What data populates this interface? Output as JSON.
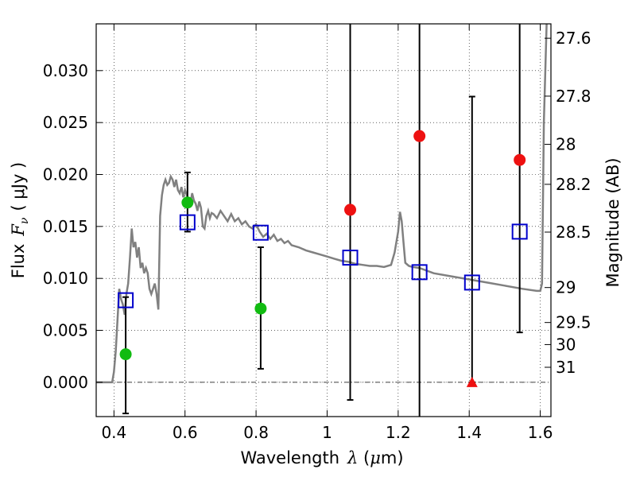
{
  "chart_data": {
    "type": "scatter",
    "xlabel": {
      "text": "Wavelength",
      "symbol": "λ",
      "unit_open": " (",
      "unit_mu": "μ",
      "unit_rest": "m)"
    },
    "ylabel": {
      "text": "Flux",
      "symbol": "F",
      "subscript": "ν",
      "unit": "(  μJy )"
    },
    "y2label": "Magnitude (AB)",
    "xlim": [
      0.35,
      1.63
    ],
    "ylim": [
      -0.0033,
      0.0345
    ],
    "x_ticks": [
      0.4,
      0.6,
      0.8,
      1.0,
      1.2,
      1.4,
      1.6
    ],
    "x_tick_labels": [
      "0.4",
      "0.6",
      "0.8",
      "1",
      "1.2",
      "1.4",
      "1.6"
    ],
    "y_ticks": [
      0,
      0.005,
      0.01,
      0.015,
      0.02,
      0.025,
      0.03
    ],
    "y_tick_labels": [
      "0.000",
      "0.005",
      "0.010",
      "0.015",
      "0.020",
      "0.025",
      "0.030"
    ],
    "mag_ticks": [
      27.6,
      27.8,
      28,
      28.2,
      28.5,
      29,
      29.5,
      30,
      31
    ],
    "mag_tick_labels": [
      "27.6",
      "27.8",
      "28",
      "28.2",
      "28.5",
      "29",
      "29.5",
      "30",
      "31"
    ],
    "grid": true,
    "colors": {
      "sed": "#808080",
      "model": "#0000cc",
      "green": "#11bb11",
      "red": "#ee1111",
      "errorbar": "#000000"
    },
    "sed": {
      "x": [
        0.35,
        0.36,
        0.37,
        0.38,
        0.385,
        0.39,
        0.395,
        0.4,
        0.405,
        0.41,
        0.415,
        0.42,
        0.425,
        0.43,
        0.435,
        0.44,
        0.445,
        0.45,
        0.455,
        0.46,
        0.465,
        0.47,
        0.475,
        0.48,
        0.485,
        0.49,
        0.495,
        0.5,
        0.505,
        0.51,
        0.515,
        0.52,
        0.525,
        0.53,
        0.535,
        0.54,
        0.545,
        0.55,
        0.555,
        0.56,
        0.565,
        0.57,
        0.575,
        0.58,
        0.585,
        0.59,
        0.595,
        0.6,
        0.605,
        0.61,
        0.615,
        0.62,
        0.625,
        0.63,
        0.635,
        0.64,
        0.645,
        0.65,
        0.655,
        0.66,
        0.665,
        0.67,
        0.675,
        0.68,
        0.69,
        0.7,
        0.71,
        0.72,
        0.73,
        0.74,
        0.75,
        0.76,
        0.77,
        0.78,
        0.79,
        0.8,
        0.81,
        0.82,
        0.83,
        0.84,
        0.85,
        0.86,
        0.87,
        0.88,
        0.89,
        0.9,
        0.92,
        0.94,
        0.96,
        0.98,
        1.0,
        1.02,
        1.04,
        1.06,
        1.08,
        1.1,
        1.12,
        1.14,
        1.16,
        1.18,
        1.19,
        1.2,
        1.205,
        1.21,
        1.215,
        1.22,
        1.23,
        1.24,
        1.26,
        1.3,
        1.35,
        1.4,
        1.45,
        1.5,
        1.55,
        1.59,
        1.6,
        1.605,
        1.61,
        1.62
      ],
      "y": [
        0.0,
        0.0,
        0.0,
        0.0,
        0.0,
        0.0,
        0.0,
        0.001,
        0.003,
        0.006,
        0.009,
        0.008,
        0.0075,
        0.0065,
        0.0085,
        0.0095,
        0.012,
        0.0148,
        0.013,
        0.0135,
        0.012,
        0.013,
        0.011,
        0.0115,
        0.0105,
        0.011,
        0.0105,
        0.009,
        0.0085,
        0.009,
        0.0095,
        0.0085,
        0.007,
        0.016,
        0.018,
        0.019,
        0.0195,
        0.019,
        0.0192,
        0.0198,
        0.0195,
        0.0188,
        0.0195,
        0.0185,
        0.0182,
        0.0188,
        0.0178,
        0.0185,
        0.018,
        0.0175,
        0.0172,
        0.0182,
        0.0175,
        0.0172,
        0.0165,
        0.0174,
        0.0168,
        0.015,
        0.0148,
        0.016,
        0.0165,
        0.0158,
        0.0163,
        0.0162,
        0.0158,
        0.0165,
        0.016,
        0.0155,
        0.0162,
        0.0155,
        0.0158,
        0.0152,
        0.0155,
        0.015,
        0.0148,
        0.0152,
        0.0145,
        0.014,
        0.0143,
        0.0138,
        0.0142,
        0.0136,
        0.0138,
        0.0134,
        0.0136,
        0.0132,
        0.013,
        0.0127,
        0.0125,
        0.0123,
        0.0121,
        0.0119,
        0.0117,
        0.0116,
        0.0114,
        0.0113,
        0.0112,
        0.0112,
        0.0111,
        0.0113,
        0.0125,
        0.0145,
        0.0164,
        0.0155,
        0.0135,
        0.0115,
        0.0112,
        0.0111,
        0.011,
        0.0105,
        0.0102,
        0.0099,
        0.0096,
        0.0093,
        0.009,
        0.0088,
        0.0088,
        0.0095,
        0.025,
        0.037
      ]
    },
    "model_points": {
      "x": [
        0.433,
        0.607,
        0.813,
        1.065,
        1.26,
        1.408,
        1.542
      ],
      "y": [
        0.0079,
        0.0154,
        0.0144,
        0.012,
        0.0106,
        0.0096,
        0.0145
      ]
    },
    "green_points": {
      "x": [
        0.433,
        0.607,
        0.813
      ],
      "y": [
        0.0027,
        0.0173,
        0.0071
      ]
    },
    "red_points": {
      "x": [
        1.065,
        1.26,
        1.542
      ],
      "y": [
        0.0166,
        0.0237,
        0.0214
      ]
    },
    "red_triangle": {
      "x": 1.408,
      "y": 0.0
    },
    "error_bars": [
      {
        "x": 0.433,
        "low": -0.003,
        "high": 0.0082
      },
      {
        "x": 0.607,
        "low": 0.0145,
        "high": 0.0202
      },
      {
        "x": 0.813,
        "low": 0.0013,
        "high": 0.013
      },
      {
        "x": 1.065,
        "low": -0.0017,
        "high": 0.036
      },
      {
        "x": 1.26,
        "low": -0.005,
        "high": 0.036
      },
      {
        "x": 1.408,
        "low": 0.0,
        "high": 0.0275
      },
      {
        "x": 1.542,
        "low": 0.0048,
        "high": 0.036
      }
    ]
  }
}
